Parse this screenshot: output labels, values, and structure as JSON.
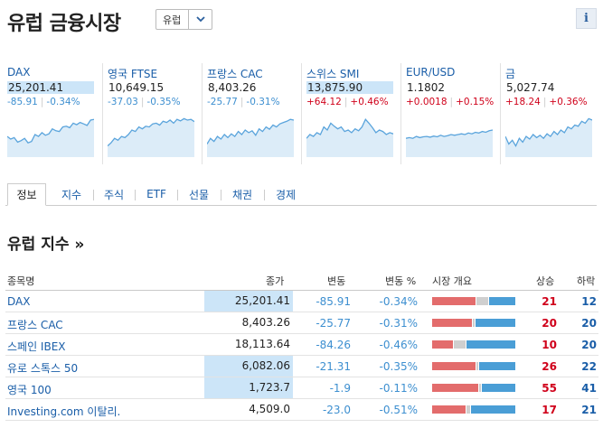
{
  "header": {
    "title": "유럽 금융시장",
    "region_select": "유럽",
    "info_label": "i"
  },
  "tiles": [
    {
      "name": "DAX",
      "price": "25,201.41",
      "change": "-85.91",
      "percent": "-0.34%",
      "direction": "neg",
      "highlight": true,
      "spark": [
        0.55,
        0.62,
        0.58,
        0.7,
        0.66,
        0.6,
        0.72,
        0.68,
        0.5,
        0.55,
        0.45,
        0.52,
        0.48,
        0.35,
        0.4,
        0.42,
        0.3,
        0.28,
        0.32,
        0.2,
        0.24,
        0.18,
        0.22,
        0.26,
        0.12,
        0.1
      ]
    },
    {
      "name": "영국 FTSE",
      "price": "10,649.15",
      "change": "-37.03",
      "percent": "-0.35%",
      "direction": "neg",
      "highlight": false,
      "spark": [
        0.8,
        0.72,
        0.6,
        0.65,
        0.55,
        0.58,
        0.5,
        0.38,
        0.42,
        0.3,
        0.35,
        0.28,
        0.3,
        0.22,
        0.2,
        0.25,
        0.15,
        0.18,
        0.12,
        0.2,
        0.1,
        0.14,
        0.08,
        0.12,
        0.1,
        0.16
      ]
    },
    {
      "name": "프랑스 CAC",
      "price": "8,403.26",
      "change": "-25.77",
      "percent": "-0.31%",
      "direction": "neg",
      "highlight": false,
      "spark": [
        0.75,
        0.6,
        0.68,
        0.55,
        0.62,
        0.5,
        0.58,
        0.48,
        0.55,
        0.42,
        0.5,
        0.38,
        0.45,
        0.4,
        0.52,
        0.35,
        0.42,
        0.3,
        0.36,
        0.25,
        0.3,
        0.22,
        0.18,
        0.15,
        0.1,
        0.12
      ]
    },
    {
      "name": "스위스 SMI",
      "price": "13,875.90",
      "change": "+64.12",
      "percent": "+0.46%",
      "direction": "pos",
      "highlight": true,
      "spark": [
        0.6,
        0.5,
        0.55,
        0.45,
        0.5,
        0.3,
        0.38,
        0.2,
        0.28,
        0.35,
        0.3,
        0.42,
        0.38,
        0.45,
        0.35,
        0.4,
        0.3,
        0.1,
        0.2,
        0.32,
        0.45,
        0.38,
        0.42,
        0.5,
        0.45,
        0.48
      ]
    },
    {
      "name": "EUR/USD",
      "price": "1.1802",
      "change": "+0.0018",
      "percent": "+0.15%",
      "direction": "pos",
      "highlight": false,
      "spark": [
        0.6,
        0.58,
        0.6,
        0.55,
        0.58,
        0.56,
        0.55,
        0.57,
        0.54,
        0.56,
        0.52,
        0.55,
        0.53,
        0.5,
        0.52,
        0.5,
        0.48,
        0.5,
        0.46,
        0.48,
        0.44,
        0.46,
        0.42,
        0.44,
        0.4,
        0.38
      ]
    },
    {
      "name": "금",
      "price": "5,027.74",
      "change": "+18.24",
      "percent": "+0.36%",
      "direction": "pos",
      "highlight": false,
      "spark": [
        0.55,
        0.75,
        0.65,
        0.8,
        0.6,
        0.7,
        0.55,
        0.62,
        0.5,
        0.58,
        0.52,
        0.6,
        0.48,
        0.55,
        0.42,
        0.5,
        0.38,
        0.45,
        0.3,
        0.35,
        0.25,
        0.28,
        0.15,
        0.2,
        0.08,
        0.12
      ]
    }
  ],
  "tabs": [
    "정보",
    "지수",
    "주식",
    "ETF",
    "선물",
    "채권",
    "경제"
  ],
  "section_title": "유럽 지수 »",
  "table": {
    "columns": {
      "name": "종목명",
      "price": "종가",
      "change": "변동",
      "percent": "변동 %",
      "overview": "시장 개요",
      "up": "상승",
      "down": "하락"
    },
    "rows": [
      {
        "name": "DAX",
        "price": "25,201.41",
        "change": "-85.91",
        "percent": "-0.34%",
        "up": "21",
        "down": "12",
        "highlight": true,
        "bar": {
          "up": 0.52,
          "flat": 0.15,
          "down": 0.33
        }
      },
      {
        "name": "프랑스 CAC",
        "price": "8,403.26",
        "change": "-25.77",
        "percent": "-0.31%",
        "up": "20",
        "down": "20",
        "highlight": false,
        "bar": {
          "up": 0.48,
          "flat": 0.03,
          "down": 0.49
        }
      },
      {
        "name": "스페인 IBEX",
        "price": "18,113.64",
        "change": "-84.26",
        "percent": "-0.46%",
        "up": "10",
        "down": "20",
        "highlight": false,
        "bar": {
          "up": 0.25,
          "flat": 0.15,
          "down": 0.6
        }
      },
      {
        "name": "유로 스톡스 50",
        "price": "6,082.06",
        "change": "-21.31",
        "percent": "-0.35%",
        "up": "26",
        "down": "22",
        "highlight": true,
        "bar": {
          "up": 0.52,
          "flat": 0.03,
          "down": 0.45
        }
      },
      {
        "name": "영국 100",
        "price": "1,723.7",
        "change": "-1.9",
        "percent": "-0.11%",
        "up": "55",
        "down": "41",
        "highlight": true,
        "bar": {
          "up": 0.55,
          "flat": 0.03,
          "down": 0.42
        }
      },
      {
        "name": "Investing.com 이탈리.",
        "price": "4,509.0",
        "change": "-23.0",
        "percent": "-0.51%",
        "up": "17",
        "down": "21",
        "highlight": false,
        "bar": {
          "up": 0.4,
          "flat": 0.05,
          "down": 0.55
        }
      }
    ]
  },
  "colors": {
    "link": "#1a5ea8",
    "negative": "#3d8fd0",
    "positive": "#d0021b",
    "highlight": "#cce5f8",
    "spark_line": "#5aa4dc",
    "spark_fill": "#dcecf8"
  }
}
